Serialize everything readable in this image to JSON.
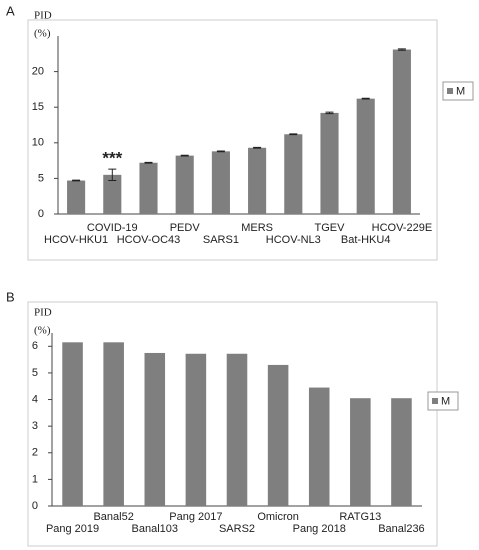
{
  "chart_data": [
    {
      "type": "bar",
      "panel_label": "A",
      "ylabel_lines": [
        "PID",
        "(%)"
      ],
      "categories": [
        "HCOV-HKU1",
        "COVID-19",
        "HCOV-OC43",
        "PEDV",
        "SARS1",
        "MERS",
        "HCOV-NL3",
        "TGEV",
        "Bat-HKU4",
        "HCOV-229E"
      ],
      "series": [
        {
          "name": "M",
          "color": "#7f7f7f",
          "values": [
            4.7,
            5.5,
            7.2,
            8.2,
            8.8,
            9.3,
            11.2,
            14.2,
            16.2,
            23.1
          ],
          "errors": [
            0.05,
            0.8,
            0.05,
            0.05,
            0.05,
            0.05,
            0.05,
            0.1,
            0.05,
            0.1
          ]
        }
      ],
      "annotations": [
        {
          "text": "***",
          "x": "COVID-19"
        }
      ],
      "ylim": [
        0,
        25
      ],
      "yticks": [
        0,
        5,
        10,
        15,
        20
      ],
      "grid": false,
      "legend": "right"
    },
    {
      "type": "bar",
      "panel_label": "B",
      "ylabel_lines": [
        "PID",
        "(%)"
      ],
      "categories": [
        "Pang 2019",
        "Banal52",
        "Banal103",
        "Pang 2017",
        "SARS2",
        "Omicron",
        "Pang 2018",
        "RATG13",
        "Banal236"
      ],
      "series": [
        {
          "name": "M",
          "color": "#7f7f7f",
          "values": [
            6.15,
            6.15,
            5.75,
            5.72,
            5.72,
            5.3,
            4.45,
            4.05,
            4.05
          ]
        }
      ],
      "ylim": [
        0,
        6.5
      ],
      "yticks": [
        0,
        1,
        2,
        3,
        4,
        5,
        6
      ],
      "grid": false,
      "legend": "right"
    }
  ]
}
